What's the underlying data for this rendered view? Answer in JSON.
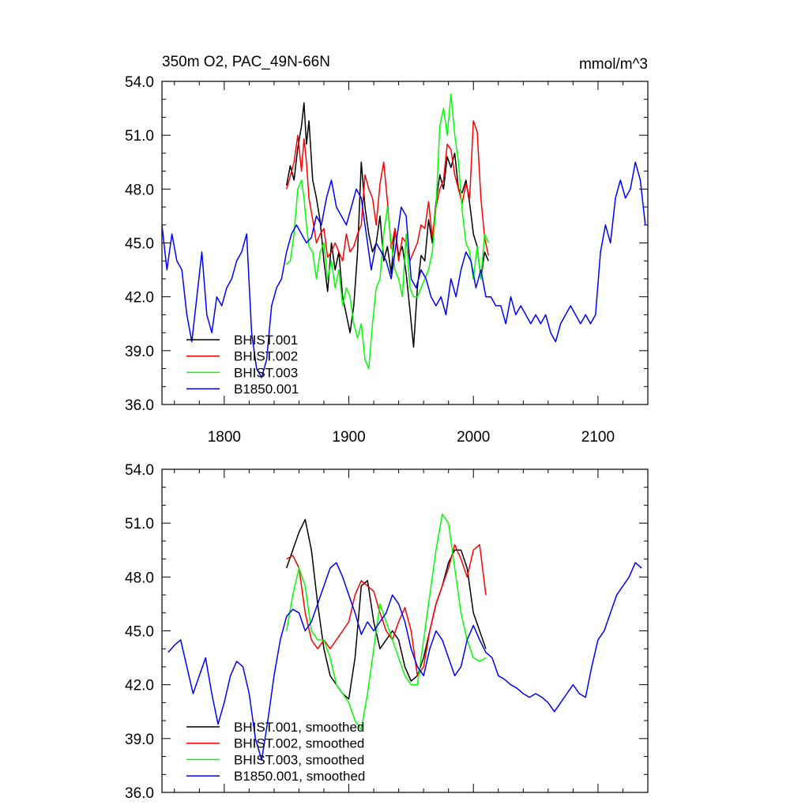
{
  "chart_data": [
    {
      "type": "line",
      "title": "350m O2, PAC_49N-66N",
      "units": "mmol/m^3",
      "xlim": [
        1750,
        2140
      ],
      "ylim": [
        36.0,
        54.0
      ],
      "x_ticks": [
        1800,
        1900,
        2000,
        2100
      ],
      "x_tick_labels": [
        "1800",
        "1900",
        "2000",
        "2100"
      ],
      "y_ticks": [
        36,
        39,
        42,
        45,
        48,
        51,
        54
      ],
      "y_tick_labels": [
        "36.0",
        "39.0",
        "42.0",
        "45.0",
        "48.0",
        "51.0",
        "54.0"
      ],
      "legend_position": "lower-left",
      "series": [
        {
          "name": "BHIST.001",
          "color": "#000000",
          "x": [
            1850,
            1853,
            1856,
            1859,
            1862,
            1864,
            1866,
            1868,
            1871,
            1874,
            1877,
            1880,
            1883,
            1886,
            1889,
            1892,
            1895,
            1898,
            1901,
            1904,
            1907,
            1910,
            1913,
            1916,
            1919,
            1922,
            1925,
            1928,
            1931,
            1934,
            1937,
            1940,
            1943,
            1946,
            1949,
            1952,
            1955,
            1958,
            1961,
            1964,
            1967,
            1970,
            1973,
            1976,
            1979,
            1982,
            1985,
            1988,
            1991,
            1994,
            1997,
            2000,
            2003,
            2006,
            2009,
            2012
          ],
          "values": [
            48.2,
            49.3,
            48.5,
            50.3,
            51.5,
            52.8,
            50.5,
            51.8,
            48.5,
            47.5,
            46.2,
            44.0,
            42.3,
            45.0,
            43.5,
            44.5,
            42.0,
            41.0,
            40.0,
            41.5,
            44.5,
            49.5,
            47.0,
            45.5,
            44.5,
            45.0,
            46.5,
            44.0,
            44.8,
            43.3,
            45.8,
            44.3,
            44.8,
            43.3,
            41.3,
            39.2,
            42.5,
            44.3,
            44.0,
            46.3,
            45.0,
            47.3,
            48.8,
            48.0,
            49.8,
            49.2,
            50.0,
            48.0,
            47.8,
            48.5,
            47.2,
            45.5,
            44.8,
            43.0,
            44.5,
            44.0
          ]
        },
        {
          "name": "BHIST.002",
          "color": "#ff0000",
          "x": [
            1850,
            1853,
            1856,
            1859,
            1862,
            1864,
            1866,
            1868,
            1871,
            1874,
            1877,
            1880,
            1883,
            1886,
            1889,
            1892,
            1895,
            1898,
            1901,
            1904,
            1907,
            1910,
            1913,
            1916,
            1919,
            1922,
            1925,
            1928,
            1931,
            1934,
            1937,
            1940,
            1943,
            1946,
            1949,
            1952,
            1955,
            1958,
            1961,
            1964,
            1967,
            1970,
            1973,
            1976,
            1979,
            1982,
            1985,
            1988,
            1991,
            1994,
            1997,
            2000,
            2003,
            2006,
            2009,
            2012
          ],
          "values": [
            48.0,
            48.7,
            49.5,
            51.0,
            49.0,
            50.8,
            49.5,
            47.5,
            46.3,
            45.0,
            45.5,
            45.8,
            44.2,
            44.5,
            45.0,
            44.5,
            44.0,
            45.5,
            44.5,
            44.8,
            45.5,
            46.0,
            48.8,
            48.0,
            47.5,
            46.0,
            48.3,
            49.5,
            47.3,
            44.7,
            45.8,
            44.0,
            45.3,
            45.0,
            44.0,
            44.5,
            45.0,
            46.0,
            45.8,
            47.3,
            45.3,
            47.0,
            48.0,
            48.5,
            50.5,
            50.2,
            48.8,
            48.0,
            47.2,
            48.3,
            47.5,
            51.8,
            51.2,
            47.5,
            45.3,
            44.3
          ]
        },
        {
          "name": "BHIST.003",
          "color": "#00ff00",
          "x": [
            1850,
            1853,
            1856,
            1859,
            1862,
            1864,
            1866,
            1868,
            1871,
            1874,
            1877,
            1880,
            1883,
            1886,
            1889,
            1892,
            1895,
            1898,
            1901,
            1904,
            1907,
            1910,
            1913,
            1916,
            1919,
            1922,
            1925,
            1928,
            1931,
            1934,
            1937,
            1940,
            1943,
            1946,
            1949,
            1952,
            1955,
            1958,
            1961,
            1964,
            1967,
            1970,
            1973,
            1976,
            1979,
            1982,
            1985,
            1988,
            1991,
            1994,
            1997,
            2000,
            2003,
            2006,
            2009,
            2012
          ],
          "values": [
            43.8,
            44.0,
            45.5,
            48.0,
            48.5,
            47.5,
            46.0,
            44.8,
            44.5,
            43.0,
            44.5,
            45.0,
            43.0,
            44.0,
            42.5,
            43.5,
            41.5,
            42.5,
            42.0,
            40.5,
            39.7,
            40.5,
            38.5,
            38.0,
            40.5,
            42.5,
            43.0,
            45.5,
            47.0,
            45.0,
            43.5,
            43.0,
            42.0,
            45.5,
            42.5,
            42.0,
            42.0,
            42.5,
            43.0,
            43.5,
            44.5,
            47.0,
            51.5,
            52.5,
            51.0,
            53.3,
            51.0,
            49.5,
            46.8,
            45.0,
            44.5,
            43.0,
            44.8,
            43.0,
            45.5,
            45.0
          ]
        },
        {
          "name": "B1850.001",
          "color": "#0000ff",
          "x": [
            1750,
            1754,
            1758,
            1762,
            1766,
            1770,
            1774,
            1778,
            1782,
            1786,
            1790,
            1794,
            1798,
            1802,
            1806,
            1810,
            1814,
            1818,
            1822,
            1826,
            1830,
            1834,
            1838,
            1842,
            1846,
            1850,
            1854,
            1858,
            1862,
            1866,
            1870,
            1874,
            1878,
            1882,
            1886,
            1890,
            1894,
            1898,
            1902,
            1906,
            1910,
            1914,
            1918,
            1922,
            1926,
            1930,
            1934,
            1938,
            1942,
            1946,
            1950,
            1954,
            1958,
            1962,
            1966,
            1970,
            1974,
            1978,
            1982,
            1986,
            1990,
            1994,
            1998,
            2002,
            2006,
            2010,
            2014,
            2018,
            2022,
            2026,
            2030,
            2034,
            2038,
            2042,
            2046,
            2050,
            2054,
            2058,
            2062,
            2066,
            2070,
            2074,
            2078,
            2082,
            2086,
            2090,
            2094,
            2098,
            2102,
            2106,
            2110,
            2114,
            2118,
            2122,
            2126,
            2130,
            2134,
            2138
          ],
          "values": [
            46.0,
            43.5,
            45.5,
            44.0,
            43.5,
            41.0,
            39.5,
            42.0,
            44.5,
            41.0,
            40.0,
            42.0,
            41.5,
            42.5,
            43.0,
            44.0,
            44.5,
            45.5,
            40.0,
            38.0,
            37.5,
            38.5,
            41.5,
            42.5,
            43.0,
            44.5,
            45.5,
            46.0,
            45.5,
            45.0,
            45.3,
            46.5,
            46.0,
            47.5,
            48.5,
            47.0,
            46.5,
            46.0,
            47.0,
            48.0,
            47.5,
            45.5,
            43.5,
            45.0,
            44.5,
            44.0,
            43.0,
            45.0,
            47.0,
            46.5,
            43.0,
            42.5,
            43.5,
            43.0,
            42.0,
            41.5,
            42.0,
            41.0,
            43.0,
            42.0,
            43.5,
            44.5,
            44.0,
            42.5,
            43.5,
            42.0,
            42.0,
            41.5,
            41.5,
            40.5,
            42.0,
            41.0,
            41.5,
            41.0,
            40.5,
            41.0,
            40.5,
            41.0,
            40.0,
            39.5,
            40.5,
            41.0,
            41.5,
            41.0,
            40.5,
            41.0,
            40.5,
            41.0,
            44.5,
            46.0,
            45.0,
            47.5,
            48.5,
            47.5,
            48.0,
            49.5,
            48.5,
            46.0
          ]
        }
      ]
    },
    {
      "type": "line",
      "xlim": [
        1750,
        2140
      ],
      "ylim": [
        36.0,
        54.0
      ],
      "x_ticks": [
        1800,
        1900,
        2000,
        2100
      ],
      "y_ticks": [
        36,
        39,
        42,
        45,
        48,
        51,
        54
      ],
      "y_tick_labels": [
        "36.0",
        "39.0",
        "42.0",
        "45.0",
        "48.0",
        "51.0",
        "54.0"
      ],
      "legend_position": "lower-left",
      "series": [
        {
          "name": "BHIST.001, smoothed",
          "color": "#000000",
          "x": [
            1850,
            1855,
            1860,
            1865,
            1870,
            1875,
            1880,
            1885,
            1890,
            1895,
            1900,
            1905,
            1910,
            1915,
            1920,
            1925,
            1930,
            1935,
            1940,
            1945,
            1950,
            1955,
            1960,
            1965,
            1970,
            1975,
            1980,
            1985,
            1990,
            1995,
            2000,
            2005,
            2010
          ],
          "values": [
            48.5,
            49.5,
            50.5,
            51.2,
            49.5,
            46.5,
            44.0,
            42.5,
            42.0,
            41.5,
            41.2,
            43.5,
            47.5,
            47.8,
            45.5,
            44.0,
            44.5,
            45.0,
            44.5,
            43.0,
            42.2,
            42.5,
            43.5,
            45.0,
            46.5,
            47.5,
            48.8,
            49.5,
            49.5,
            48.5,
            46.0,
            45.0,
            44.0
          ]
        },
        {
          "name": "BHIST.002, smoothed",
          "color": "#ff0000",
          "x": [
            1850,
            1855,
            1860,
            1865,
            1870,
            1875,
            1880,
            1885,
            1890,
            1895,
            1900,
            1905,
            1910,
            1915,
            1920,
            1925,
            1930,
            1935,
            1940,
            1945,
            1950,
            1955,
            1960,
            1965,
            1970,
            1975,
            1980,
            1985,
            1990,
            1995,
            2000,
            2005,
            2010
          ],
          "values": [
            49.0,
            49.2,
            48.5,
            46.0,
            44.5,
            44.0,
            44.5,
            44.0,
            44.5,
            45.0,
            45.5,
            47.0,
            47.8,
            47.5,
            47.2,
            46.0,
            45.0,
            44.5,
            45.5,
            46.3,
            45.0,
            42.5,
            43.0,
            45.0,
            46.5,
            47.5,
            48.5,
            49.8,
            49.0,
            48.0,
            49.5,
            49.8,
            47.0
          ]
        },
        {
          "name": "BHIST.003, smoothed",
          "color": "#00ff00",
          "x": [
            1850,
            1855,
            1860,
            1865,
            1870,
            1875,
            1880,
            1885,
            1890,
            1895,
            1900,
            1905,
            1910,
            1915,
            1920,
            1925,
            1930,
            1935,
            1940,
            1945,
            1950,
            1955,
            1960,
            1965,
            1970,
            1975,
            1980,
            1985,
            1990,
            1995,
            2000,
            2005,
            2010
          ],
          "values": [
            45.0,
            47.0,
            48.5,
            47.5,
            45.0,
            44.5,
            44.5,
            43.5,
            42.0,
            41.5,
            41.0,
            40.0,
            39.5,
            41.5,
            44.0,
            46.5,
            45.5,
            44.5,
            43.5,
            42.5,
            42.0,
            42.0,
            44.5,
            47.0,
            49.5,
            51.5,
            51.0,
            48.5,
            46.0,
            44.5,
            43.5,
            43.3,
            43.5
          ]
        },
        {
          "name": "B1850.001, smoothed",
          "color": "#0000ff",
          "x": [
            1755,
            1760,
            1765,
            1770,
            1775,
            1780,
            1785,
            1790,
            1795,
            1800,
            1805,
            1810,
            1815,
            1820,
            1825,
            1830,
            1835,
            1840,
            1845,
            1850,
            1855,
            1860,
            1865,
            1870,
            1875,
            1880,
            1885,
            1890,
            1895,
            1900,
            1905,
            1910,
            1915,
            1920,
            1925,
            1930,
            1935,
            1940,
            1945,
            1950,
            1955,
            1960,
            1965,
            1970,
            1975,
            1980,
            1985,
            1990,
            1995,
            2000,
            2005,
            2010,
            2015,
            2020,
            2025,
            2030,
            2035,
            2040,
            2045,
            2050,
            2055,
            2060,
            2065,
            2070,
            2075,
            2080,
            2085,
            2090,
            2095,
            2100,
            2105,
            2110,
            2115,
            2120,
            2125,
            2130,
            2135
          ],
          "values": [
            43.8,
            44.2,
            44.5,
            43.0,
            41.5,
            42.5,
            43.5,
            41.5,
            39.8,
            41.0,
            42.5,
            43.3,
            43.0,
            41.5,
            39.0,
            37.8,
            40.0,
            42.5,
            44.5,
            45.8,
            46.2,
            46.0,
            45.0,
            45.5,
            46.5,
            47.5,
            48.5,
            48.8,
            48.0,
            47.0,
            46.0,
            44.8,
            45.5,
            45.0,
            45.5,
            46.0,
            47.0,
            46.5,
            45.5,
            44.0,
            43.0,
            42.5,
            44.0,
            45.0,
            44.5,
            43.5,
            42.5,
            43.0,
            44.5,
            45.3,
            44.5,
            43.8,
            43.5,
            42.5,
            42.3,
            42.0,
            41.8,
            41.5,
            41.3,
            41.5,
            41.3,
            41.0,
            40.5,
            41.0,
            41.5,
            42.0,
            41.5,
            41.3,
            43.0,
            44.5,
            45.0,
            46.0,
            47.0,
            47.5,
            48.0,
            48.8,
            48.5
          ]
        }
      ]
    }
  ]
}
